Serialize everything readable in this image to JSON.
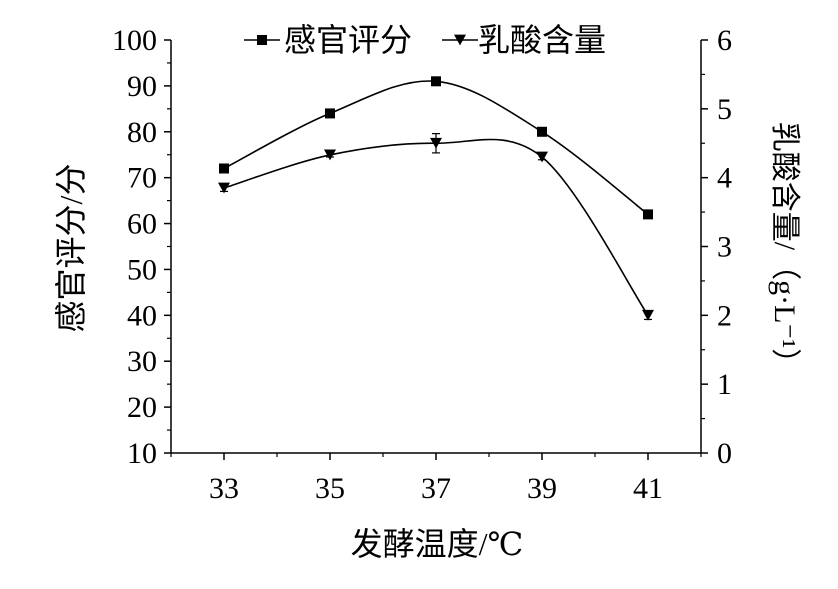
{
  "chart_data": {
    "type": "line",
    "x": [
      33,
      35,
      37,
      39,
      41
    ],
    "xticks": [
      "33",
      "35",
      "37",
      "39",
      "41"
    ],
    "xlim": [
      32,
      42
    ],
    "xlabel": "发酵温度/℃",
    "ylabel_left": "感官评分/分",
    "ylabel_right": "乳酸含量/（g·L⁻¹）",
    "ylim_left": [
      10,
      100
    ],
    "yticks_left": [
      "10",
      "20",
      "30",
      "40",
      "50",
      "60",
      "70",
      "80",
      "90",
      "100"
    ],
    "ylim_right": [
      0,
      6
    ],
    "yticks_right": [
      "0",
      "1",
      "2",
      "3",
      "4",
      "5",
      "6"
    ],
    "legend_position": "top",
    "grid": false,
    "series": [
      {
        "name": "感官评分",
        "axis": "left",
        "marker": "square",
        "values": [
          72,
          84,
          91,
          80,
          62
        ]
      },
      {
        "name": "乳酸含量",
        "axis": "right",
        "marker": "triangle-down",
        "values": [
          3.85,
          4.33,
          4.5,
          4.3,
          2.0
        ],
        "error": [
          0.05,
          0.03,
          0.14,
          0.04,
          0.06
        ]
      }
    ]
  }
}
